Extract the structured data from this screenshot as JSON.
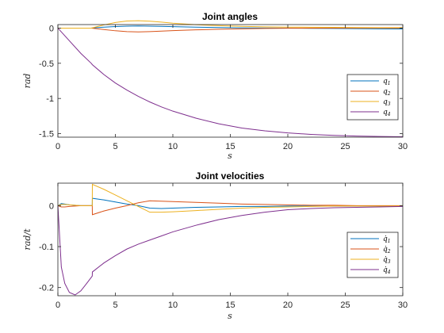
{
  "chart_data": [
    {
      "type": "line",
      "title": "Joint angles",
      "xlabel": "s",
      "ylabel": "rad",
      "xlim": [
        0,
        30
      ],
      "ylim": [
        -1.55,
        0.05
      ],
      "xticks": [
        0,
        5,
        10,
        15,
        20,
        25,
        30
      ],
      "yticks": [
        0,
        -0.5,
        -1,
        -1.5
      ],
      "ytick_labels": [
        "0",
        "-0.5",
        "-1",
        "-1.5"
      ],
      "grid": false,
      "legend_placement": "right",
      "x": [
        0,
        1,
        2,
        2.9,
        3,
        4,
        5,
        6,
        7,
        8,
        9,
        10,
        12,
        14,
        16,
        18,
        20,
        22,
        24,
        26,
        28,
        30
      ],
      "series": [
        {
          "name": "q",
          "subscript": "1",
          "color": "#0072BD",
          "values": [
            0,
            0,
            0,
            0,
            0.002,
            0.013,
            0.022,
            0.028,
            0.03,
            0.028,
            0.024,
            0.02,
            0.013,
            0.008,
            0.004,
            0.001,
            0.0,
            -0.003,
            -0.005,
            -0.008,
            -0.01,
            -0.012
          ]
        },
        {
          "name": "q",
          "subscript": "2",
          "color": "#D95319",
          "values": [
            0,
            0,
            0,
            0,
            -0.002,
            -0.02,
            -0.038,
            -0.05,
            -0.054,
            -0.05,
            -0.043,
            -0.036,
            -0.025,
            -0.016,
            -0.01,
            -0.005,
            -0.002,
            0.0,
            0.001,
            0.001,
            0.001,
            0.0
          ]
        },
        {
          "name": "q",
          "subscript": "3",
          "color": "#EDB120",
          "values": [
            0,
            0,
            0,
            0,
            0.004,
            0.045,
            0.08,
            0.1,
            0.105,
            0.098,
            0.085,
            0.07,
            0.048,
            0.034,
            0.024,
            0.018,
            0.014,
            0.012,
            0.01,
            0.008,
            0.007,
            0.006
          ]
        },
        {
          "name": "q",
          "subscript": "4",
          "color": "#7E2F8E",
          "values": [
            0,
            -0.18,
            -0.36,
            -0.5,
            -0.52,
            -0.66,
            -0.78,
            -0.88,
            -0.97,
            -1.05,
            -1.12,
            -1.18,
            -1.28,
            -1.36,
            -1.42,
            -1.46,
            -1.49,
            -1.51,
            -1.525,
            -1.535,
            -1.54,
            -1.545
          ]
        }
      ]
    },
    {
      "type": "line",
      "title": "Joint velocities",
      "xlabel": "s",
      "ylabel": "rad/t",
      "xlim": [
        0,
        30
      ],
      "ylim": [
        -0.22,
        0.055
      ],
      "xticks": [
        0,
        5,
        10,
        15,
        20,
        25,
        30
      ],
      "yticks": [
        0,
        -0.1,
        -0.2
      ],
      "ytick_labels": [
        "0",
        "-0.1",
        "-0.2"
      ],
      "grid": false,
      "legend_placement": "right",
      "x": [
        0,
        0.3,
        0.6,
        1,
        1.5,
        2,
        2.5,
        2.99,
        3.0,
        4,
        5,
        6,
        7,
        8,
        9,
        10,
        12,
        14,
        16,
        18,
        20,
        22,
        24,
        26,
        28,
        30
      ],
      "series": [
        {
          "name": "q̇",
          "subscript": "1",
          "color": "#0072BD",
          "values": [
            0,
            0.005,
            0.004,
            0.002,
            0.001,
            0.0,
            0.0,
            0.0,
            0.018,
            0.014,
            0.009,
            0.004,
            0.0,
            -0.006,
            -0.007,
            -0.006,
            -0.004,
            -0.003,
            -0.002,
            -0.002,
            -0.001,
            -0.001,
            -0.001,
            -0.001,
            -0.001,
            -0.001
          ]
        },
        {
          "name": "q̇",
          "subscript": "2",
          "color": "#D95319",
          "values": [
            0,
            -0.003,
            -0.003,
            -0.002,
            -0.001,
            0.0,
            0.0,
            0.0,
            -0.022,
            -0.013,
            -0.006,
            0.0,
            0.007,
            0.012,
            0.011,
            0.01,
            0.008,
            0.006,
            0.004,
            0.003,
            0.002,
            0.001,
            0.001,
            0.0,
            0.0,
            0.0
          ]
        },
        {
          "name": "q̇",
          "subscript": "3",
          "color": "#EDB120",
          "values": [
            0,
            0.003,
            0.003,
            0.002,
            0.001,
            0.0,
            0.0,
            0.0,
            0.052,
            0.04,
            0.026,
            0.012,
            -0.002,
            -0.016,
            -0.016,
            -0.015,
            -0.012,
            -0.009,
            -0.006,
            -0.004,
            -0.003,
            -0.002,
            -0.001,
            -0.001,
            -0.001,
            -0.001
          ]
        },
        {
          "name": "q̇",
          "subscript": "4",
          "color": "#7E2F8E",
          "values": [
            0,
            -0.15,
            -0.19,
            -0.212,
            -0.218,
            -0.208,
            -0.19,
            -0.172,
            -0.162,
            -0.14,
            -0.122,
            -0.106,
            -0.094,
            -0.084,
            -0.074,
            -0.064,
            -0.048,
            -0.034,
            -0.024,
            -0.016,
            -0.01,
            -0.007,
            -0.005,
            -0.004,
            -0.003,
            -0.002
          ]
        }
      ]
    }
  ]
}
